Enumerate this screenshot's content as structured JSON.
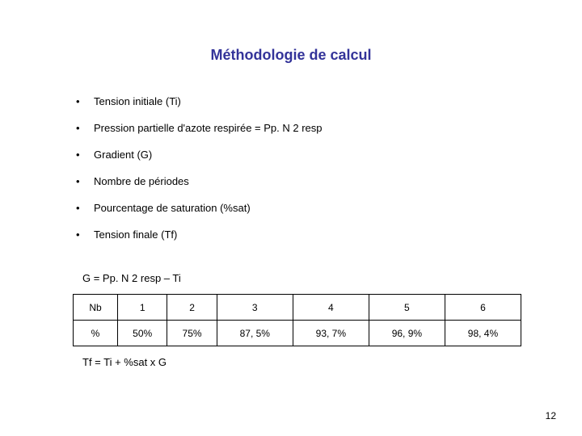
{
  "title": "Méthodologie de calcul",
  "bullets": [
    "Tension initiale (Ti)",
    "Pression partielle d'azote respirée = Pp. N 2 resp",
    "Gradient (G)",
    "Nombre de périodes",
    "Pourcentage de saturation (%sat)",
    "Tension finale (Tf)"
  ],
  "formula1": "G = Pp. N 2 resp – Ti",
  "table": {
    "row1_hdr": "Nb",
    "row1": [
      "1",
      "2",
      "3",
      "4",
      "5",
      "6"
    ],
    "row2_hdr": "%",
    "row2": [
      "50%",
      "75%",
      "87, 5%",
      "93, 7%",
      "96, 9%",
      "98, 4%"
    ]
  },
  "formula2": "Tf = Ti + %sat x G",
  "page_number": "12",
  "colors": {
    "title": "#333399",
    "text": "#000000",
    "background": "#ffffff",
    "border": "#000000"
  }
}
